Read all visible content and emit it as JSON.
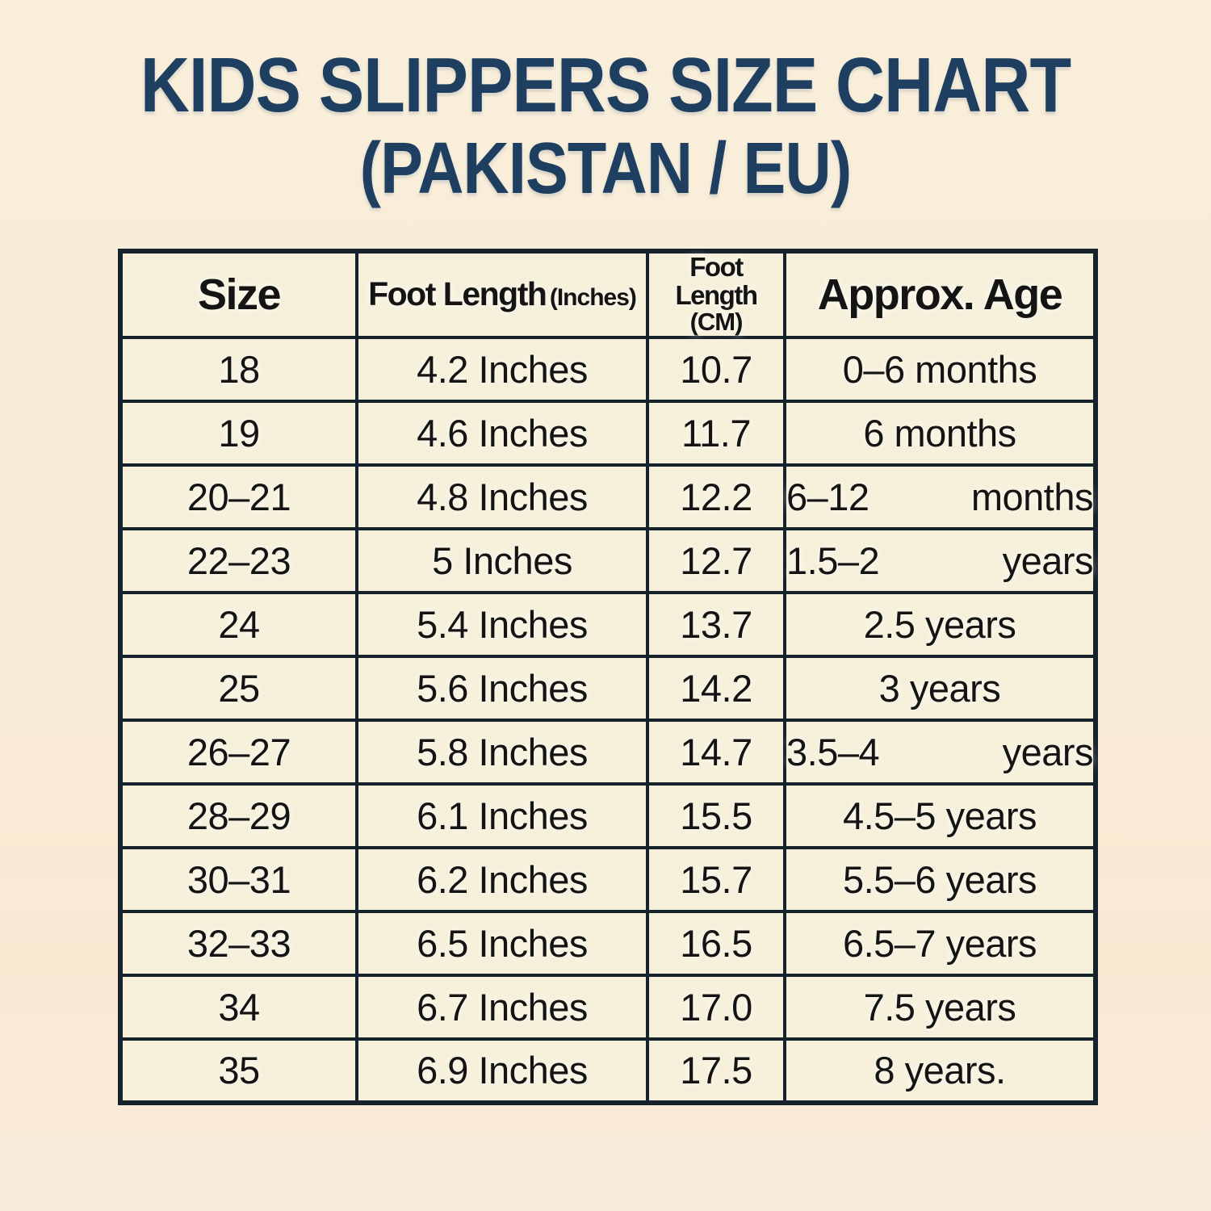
{
  "title": {
    "line1": "KIDS SLIPPERS SIZE CHART",
    "line2": "(PAKISTAN / EU)",
    "color": "#1e3f60"
  },
  "colors": {
    "page_background": "#f8ecd7",
    "cell_background": "#f6f0da",
    "border": "#17232c",
    "text": "#141414"
  },
  "table": {
    "columns": [
      {
        "main": "Size",
        "suffix": ""
      },
      {
        "main": "Foot Length",
        "suffix": "(Inches)"
      },
      {
        "main": "Foot Length",
        "suffix": "(CM)"
      },
      {
        "main": "Approx. Age",
        "suffix": ""
      }
    ],
    "rows": [
      {
        "size": "18",
        "inches": "4.2 Inches",
        "cm": "10.7",
        "age": "0–6 months"
      },
      {
        "size": "19",
        "inches": "4.6 Inches",
        "cm": "11.7",
        "age": "6 months"
      },
      {
        "size": "20–21",
        "inches": "4.8 Inches",
        "cm": "12.2",
        "age": "6–12 months"
      },
      {
        "size": "22–23",
        "inches": "5 Inches",
        "cm": "12.7",
        "age": "1.5–2 years"
      },
      {
        "size": "24",
        "inches": "5.4 Inches",
        "cm": "13.7",
        "age": "2.5 years"
      },
      {
        "size": "25",
        "inches": "5.6 Inches",
        "cm": "14.2",
        "age": "3 years"
      },
      {
        "size": "26–27",
        "inches": "5.8 Inches",
        "cm": "14.7",
        "age": "3.5–4 years"
      },
      {
        "size": "28–29",
        "inches": "6.1 Inches",
        "cm": "15.5",
        "age": "4.5–5 years"
      },
      {
        "size": "30–31",
        "inches": "6.2 Inches",
        "cm": "15.7",
        "age": "5.5–6 years"
      },
      {
        "size": "32–33",
        "inches": "6.5 Inches",
        "cm": "16.5",
        "age": "6.5–7 years"
      },
      {
        "size": "34",
        "inches": "6.7 Inches",
        "cm": "17.0",
        "age": "7.5 years"
      },
      {
        "size": "35",
        "inches": "6.9 Inches",
        "cm": "17.5",
        "age": "8 years."
      }
    ]
  },
  "chart_data": {
    "type": "table",
    "title": "KIDS SLIPPERS SIZE CHART (PAKISTAN / EU)",
    "columns": [
      "Size",
      "Foot Length (Inches)",
      "Foot Length (CM)",
      "Approx. Age"
    ],
    "rows": [
      [
        "18",
        "4.2 Inches",
        "10.7",
        "0–6 months"
      ],
      [
        "19",
        "4.6 Inches",
        "11.7",
        "6 months"
      ],
      [
        "20–21",
        "4.8 Inches",
        "12.2",
        "6–12 months"
      ],
      [
        "22–23",
        "5 Inches",
        "12.7",
        "1.5–2 years"
      ],
      [
        "24",
        "5.4 Inches",
        "13.7",
        "2.5 years"
      ],
      [
        "25",
        "5.6 Inches",
        "14.2",
        "3 years"
      ],
      [
        "26–27",
        "5.8 Inches",
        "14.7",
        "3.5–4 years"
      ],
      [
        "28–29",
        "6.1 Inches",
        "15.5",
        "4.5–5 years"
      ],
      [
        "30–31",
        "6.2 Inches",
        "15.7",
        "5.5–6 years"
      ],
      [
        "32–33",
        "6.5 Inches",
        "16.5",
        "6.5–7 years"
      ],
      [
        "34",
        "6.7 Inches",
        "17.0",
        "7.5 years"
      ],
      [
        "35",
        "6.9 Inches",
        "17.5",
        "8 years."
      ]
    ],
    "foot_length_cm_values": [
      10.7,
      11.7,
      12.2,
      12.7,
      13.7,
      14.2,
      14.7,
      15.5,
      15.7,
      16.5,
      17.0,
      17.5
    ],
    "foot_length_inch_values": [
      4.2,
      4.6,
      4.8,
      5,
      5.4,
      5.6,
      5.8,
      6.1,
      6.2,
      6.5,
      6.7,
      6.9
    ]
  }
}
